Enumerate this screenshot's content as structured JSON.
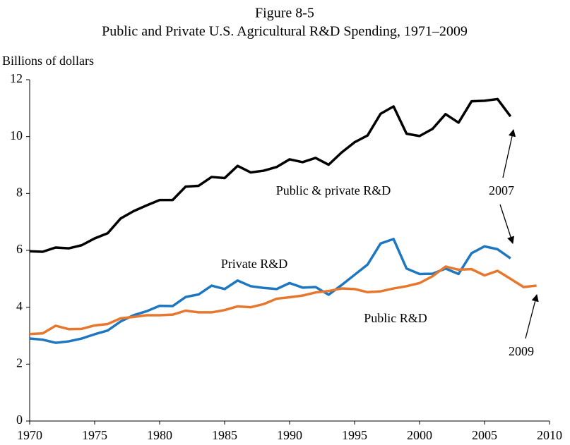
{
  "chart_data": {
    "type": "line",
    "title": "Figure 8-5",
    "subtitle": "Public and Private U.S. Agricultural R&D Spending, 1971–2009",
    "y_label": "Billions of dollars",
    "x": [
      1970,
      1971,
      1972,
      1973,
      1974,
      1975,
      1976,
      1977,
      1978,
      1979,
      1980,
      1981,
      1982,
      1983,
      1984,
      1985,
      1986,
      1987,
      1988,
      1989,
      1990,
      1991,
      1992,
      1993,
      1994,
      1995,
      1996,
      1997,
      1998,
      1999,
      2000,
      2001,
      2002,
      2003,
      2004,
      2005,
      2006,
      2007,
      2008,
      2009
    ],
    "series": [
      {
        "name": "Public & private R&D",
        "color": "#000000",
        "values": [
          5.97,
          5.95,
          6.1,
          6.07,
          6.18,
          6.42,
          6.6,
          7.12,
          7.38,
          7.58,
          7.77,
          7.77,
          8.24,
          8.27,
          8.58,
          8.54,
          8.97,
          8.74,
          8.8,
          8.93,
          9.2,
          9.1,
          9.25,
          9.01,
          9.44,
          9.8,
          10.04,
          10.8,
          11.06,
          10.1,
          10.02,
          10.27,
          10.79,
          10.49,
          11.24,
          11.26,
          11.32,
          10.71,
          null,
          null
        ]
      },
      {
        "name": "Private R&D",
        "color": "#1f77c0",
        "values": [
          2.9,
          2.86,
          2.75,
          2.8,
          2.9,
          3.05,
          3.18,
          3.5,
          3.72,
          3.86,
          4.05,
          4.04,
          4.36,
          4.45,
          4.76,
          4.64,
          4.94,
          4.74,
          4.68,
          4.64,
          4.85,
          4.69,
          4.71,
          4.44,
          4.78,
          5.14,
          5.5,
          6.24,
          6.4,
          5.36,
          5.17,
          5.18,
          5.36,
          5.17,
          5.9,
          6.14,
          6.04,
          5.72,
          null,
          null
        ]
      },
      {
        "name": "Public R&D",
        "color": "#e8772e",
        "values": [
          3.06,
          3.08,
          3.35,
          3.23,
          3.24,
          3.36,
          3.41,
          3.61,
          3.66,
          3.72,
          3.72,
          3.74,
          3.88,
          3.82,
          3.82,
          3.9,
          4.03,
          4.0,
          4.11,
          4.3,
          4.35,
          4.41,
          4.52,
          4.57,
          4.66,
          4.64,
          4.53,
          4.56,
          4.66,
          4.74,
          4.85,
          5.09,
          5.43,
          5.32,
          5.34,
          5.12,
          5.28,
          5.0,
          4.71,
          4.76
        ]
      }
    ],
    "annotations": [
      "2007",
      "2009"
    ],
    "xlim": [
      1970,
      2010
    ],
    "xticks": [
      1970,
      1975,
      1980,
      1985,
      1990,
      1995,
      2000,
      2005,
      2010
    ],
    "ylim": [
      0,
      12
    ],
    "yticks": [
      0,
      2,
      4,
      6,
      8,
      10,
      12
    ],
    "grid": false
  }
}
